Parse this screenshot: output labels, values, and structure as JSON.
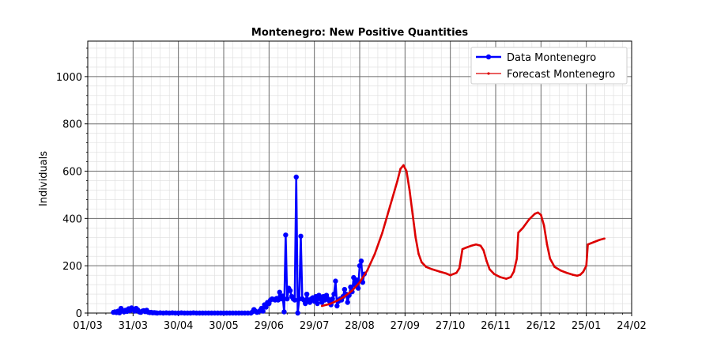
{
  "chart_data": {
    "type": "line",
    "title": "Montenegro: New Positive Quantities",
    "xlabel": "",
    "ylabel": "Individuals",
    "x_tick_labels": [
      "01/03",
      "31/03",
      "30/04",
      "30/05",
      "29/06",
      "29/07",
      "28/08",
      "27/09",
      "27/10",
      "26/11",
      "26/12",
      "25/01",
      "24/02"
    ],
    "y_ticks": [
      0,
      200,
      400,
      600,
      800,
      1000
    ],
    "xlim_days": [
      0,
      360
    ],
    "ylim": [
      0,
      1150
    ],
    "grid": true,
    "legend_position": "top-right",
    "colors": {
      "data": "#0000ff",
      "forecast": "#dd0000",
      "grid_major": "#6a6a6a",
      "grid_minor": "#dddddd"
    },
    "series": [
      {
        "name": "Data Montenegro",
        "style": "line-with-circle-markers",
        "points": [
          [
            17,
            3
          ],
          [
            18,
            5
          ],
          [
            19,
            2
          ],
          [
            20,
            8
          ],
          [
            21,
            1
          ],
          [
            22,
            20
          ],
          [
            23,
            10
          ],
          [
            24,
            5
          ],
          [
            25,
            12
          ],
          [
            26,
            7
          ],
          [
            27,
            18
          ],
          [
            28,
            10
          ],
          [
            29,
            22
          ],
          [
            30,
            15
          ],
          [
            31,
            8
          ],
          [
            32,
            20
          ],
          [
            33,
            14
          ],
          [
            34,
            5
          ],
          [
            35,
            3
          ],
          [
            36,
            8
          ],
          [
            37,
            10
          ],
          [
            38,
            6
          ],
          [
            39,
            12
          ],
          [
            40,
            4
          ],
          [
            41,
            2
          ],
          [
            42,
            3
          ],
          [
            43,
            1
          ],
          [
            44,
            2
          ],
          [
            45,
            1
          ],
          [
            46,
            0
          ],
          [
            48,
            1
          ],
          [
            50,
            0
          ],
          [
            52,
            1
          ],
          [
            54,
            0
          ],
          [
            56,
            1
          ],
          [
            58,
            0
          ],
          [
            60,
            0
          ],
          [
            62,
            1
          ],
          [
            64,
            0
          ],
          [
            66,
            0
          ],
          [
            68,
            0
          ],
          [
            70,
            1
          ],
          [
            72,
            0
          ],
          [
            74,
            0
          ],
          [
            76,
            0
          ],
          [
            78,
            0
          ],
          [
            80,
            0
          ],
          [
            82,
            0
          ],
          [
            84,
            0
          ],
          [
            86,
            0
          ],
          [
            88,
            0
          ],
          [
            90,
            0
          ],
          [
            92,
            0
          ],
          [
            94,
            0
          ],
          [
            96,
            0
          ],
          [
            98,
            0
          ],
          [
            100,
            0
          ],
          [
            102,
            0
          ],
          [
            104,
            0
          ],
          [
            106,
            0
          ],
          [
            108,
            0
          ],
          [
            109,
            5
          ],
          [
            110,
            15
          ],
          [
            111,
            8
          ],
          [
            112,
            3
          ],
          [
            113,
            5
          ],
          [
            114,
            10
          ],
          [
            115,
            20
          ],
          [
            116,
            8
          ],
          [
            117,
            35
          ],
          [
            118,
            25
          ],
          [
            119,
            45
          ],
          [
            120,
            40
          ],
          [
            121,
            55
          ],
          [
            122,
            60
          ],
          [
            123,
            58
          ],
          [
            124,
            55
          ],
          [
            125,
            62
          ],
          [
            126,
            55
          ],
          [
            127,
            88
          ],
          [
            128,
            60
          ],
          [
            129,
            72
          ],
          [
            130,
            5
          ],
          [
            131,
            330
          ],
          [
            132,
            60
          ],
          [
            133,
            105
          ],
          [
            134,
            95
          ],
          [
            135,
            70
          ],
          [
            136,
            60
          ],
          [
            137,
            55
          ],
          [
            138,
            575
          ],
          [
            139,
            0
          ],
          [
            140,
            60
          ],
          [
            141,
            325
          ],
          [
            142,
            60
          ],
          [
            143,
            55
          ],
          [
            144,
            40
          ],
          [
            145,
            80
          ],
          [
            146,
            55
          ],
          [
            147,
            45
          ],
          [
            148,
            60
          ],
          [
            149,
            65
          ],
          [
            150,
            50
          ],
          [
            151,
            70
          ],
          [
            152,
            40
          ],
          [
            153,
            75
          ],
          [
            154,
            60
          ],
          [
            155,
            45
          ],
          [
            156,
            70
          ],
          [
            157,
            55
          ],
          [
            158,
            75
          ],
          [
            159,
            60
          ],
          [
            160,
            50
          ],
          [
            161,
            35
          ],
          [
            162,
            60
          ],
          [
            163,
            80
          ],
          [
            164,
            135
          ],
          [
            165,
            30
          ],
          [
            166,
            50
          ],
          [
            167,
            60
          ],
          [
            168,
            55
          ],
          [
            169,
            70
          ],
          [
            170,
            100
          ],
          [
            171,
            80
          ],
          [
            172,
            45
          ],
          [
            173,
            75
          ],
          [
            174,
            110
          ],
          [
            175,
            90
          ],
          [
            176,
            150
          ],
          [
            177,
            120
          ],
          [
            178,
            140
          ],
          [
            179,
            105
          ],
          [
            180,
            200
          ],
          [
            181,
            220
          ],
          [
            182,
            130
          ],
          [
            183,
            165
          ]
        ]
      },
      {
        "name": "Forecast Montenegro",
        "style": "line-with-small-markers",
        "points": [
          [
            155,
            30
          ],
          [
            160,
            38
          ],
          [
            165,
            52
          ],
          [
            170,
            70
          ],
          [
            175,
            95
          ],
          [
            180,
            130
          ],
          [
            185,
            180
          ],
          [
            190,
            250
          ],
          [
            195,
            340
          ],
          [
            200,
            450
          ],
          [
            205,
            560
          ],
          [
            207,
            610
          ],
          [
            209,
            625
          ],
          [
            211,
            600
          ],
          [
            213,
            520
          ],
          [
            215,
            420
          ],
          [
            217,
            320
          ],
          [
            219,
            250
          ],
          [
            221,
            215
          ],
          [
            224,
            195
          ],
          [
            228,
            185
          ],
          [
            233,
            175
          ],
          [
            237,
            168
          ],
          [
            240,
            160
          ],
          [
            244,
            170
          ],
          [
            246,
            190
          ],
          [
            248,
            270
          ],
          [
            251,
            278
          ],
          [
            254,
            285
          ],
          [
            257,
            290
          ],
          [
            260,
            285
          ],
          [
            262,
            265
          ],
          [
            264,
            220
          ],
          [
            266,
            185
          ],
          [
            269,
            165
          ],
          [
            273,
            152
          ],
          [
            277,
            145
          ],
          [
            280,
            152
          ],
          [
            282,
            175
          ],
          [
            284,
            230
          ],
          [
            285,
            340
          ],
          [
            288,
            360
          ],
          [
            292,
            395
          ],
          [
            296,
            420
          ],
          [
            298,
            425
          ],
          [
            300,
            415
          ],
          [
            302,
            370
          ],
          [
            304,
            290
          ],
          [
            306,
            230
          ],
          [
            309,
            195
          ],
          [
            313,
            180
          ],
          [
            317,
            170
          ],
          [
            321,
            162
          ],
          [
            324,
            158
          ],
          [
            326,
            162
          ],
          [
            328,
            175
          ],
          [
            330,
            200
          ],
          [
            331,
            290
          ],
          [
            335,
            300
          ],
          [
            339,
            310
          ],
          [
            342,
            315
          ]
        ]
      }
    ]
  }
}
